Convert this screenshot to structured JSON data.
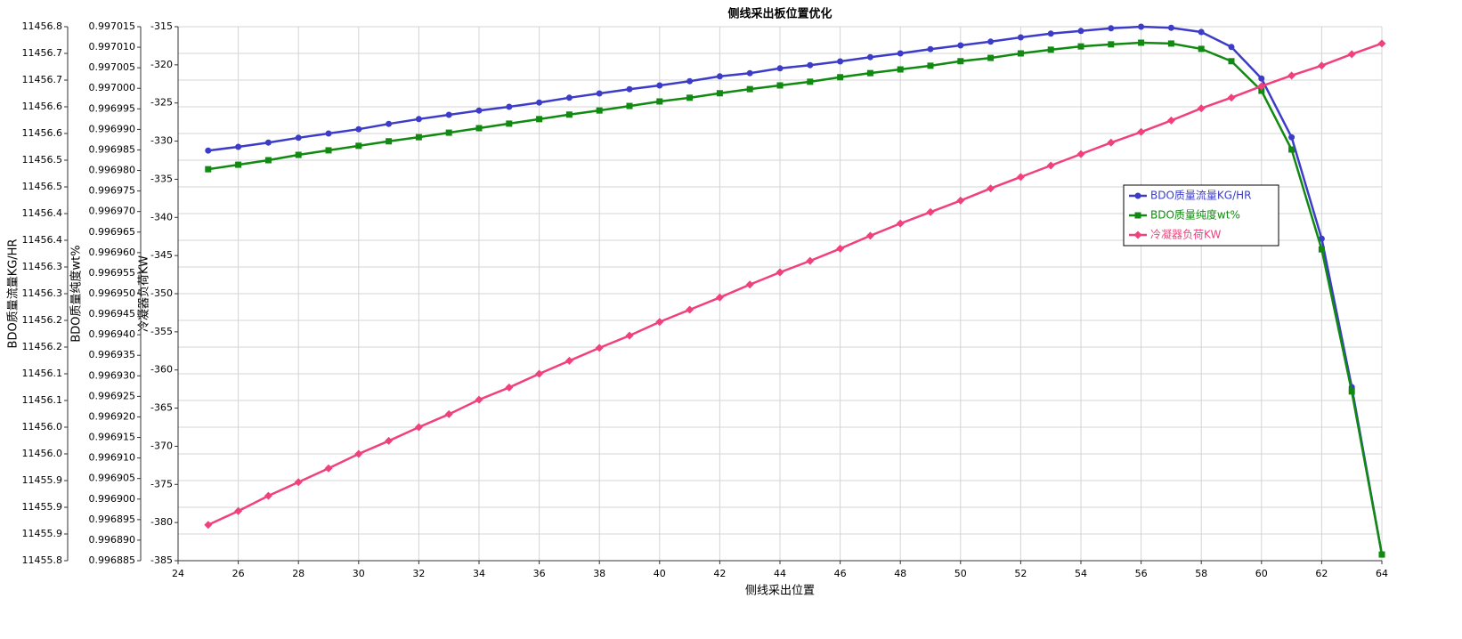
{
  "chart_data": {
    "type": "line",
    "title": "侧线采出板位置优化",
    "x_label": "侧线采出位置",
    "y_label": "BDO质量流量KG/HR",
    "y2_label": "BDO质量纯度wt%",
    "y3_label": "冷凝器负荷KW",
    "grid": true,
    "legend": "upper right",
    "x": [
      25,
      26,
      27,
      28,
      29,
      30,
      31,
      32,
      33,
      34,
      35,
      36,
      37,
      38,
      39,
      40,
      41,
      42,
      43,
      44,
      45,
      46,
      47,
      48,
      49,
      50,
      51,
      52,
      53,
      54,
      55,
      56,
      57,
      58,
      59,
      60,
      61,
      62,
      63,
      64
    ],
    "xlim": [
      24,
      64
    ],
    "xticks": [
      24,
      26,
      28,
      30,
      32,
      34,
      36,
      38,
      40,
      42,
      44,
      46,
      48,
      50,
      52,
      54,
      56,
      58,
      60,
      62,
      64
    ],
    "ylim": [
      11455.8,
      11456.8
    ],
    "yticks": [
      {
        "value": 11455.8,
        "label": "11455.8"
      },
      {
        "value": 11455.85,
        "label": "11455.9"
      },
      {
        "value": 11455.9,
        "label": "11455.9"
      },
      {
        "value": 11455.95,
        "label": "11455.9"
      },
      {
        "value": 11456.0,
        "label": "11456.0"
      },
      {
        "value": 11456.05,
        "label": "11456.0"
      },
      {
        "value": 11456.1,
        "label": "11456.1"
      },
      {
        "value": 11456.15,
        "label": "11456.1"
      },
      {
        "value": 11456.2,
        "label": "11456.2"
      },
      {
        "value": 11456.25,
        "label": "11456.2"
      },
      {
        "value": 11456.3,
        "label": "11456.3"
      },
      {
        "value": 11456.35,
        "label": "11456.3"
      },
      {
        "value": 11456.4,
        "label": "11456.4"
      },
      {
        "value": 11456.45,
        "label": "11456.4"
      },
      {
        "value": 11456.5,
        "label": "11456.5"
      },
      {
        "value": 11456.55,
        "label": "11456.5"
      },
      {
        "value": 11456.6,
        "label": "11456.6"
      },
      {
        "value": 11456.65,
        "label": "11456.6"
      },
      {
        "value": 11456.7,
        "label": "11456.7"
      },
      {
        "value": 11456.75,
        "label": "11456.7"
      },
      {
        "value": 11456.8,
        "label": "11456.8"
      }
    ],
    "y2lim": [
      0.996885,
      0.997015
    ],
    "y2ticks": [
      0.996885,
      {
        "value": 0.99689,
        "label": "0.996890"
      },
      0.996895,
      {
        "value": 0.9969,
        "label": "0.996900"
      },
      0.996905,
      {
        "value": 0.99691,
        "label": "0.996910"
      },
      0.996915,
      {
        "value": 0.99692,
        "label": "0.996920"
      },
      0.996925,
      {
        "value": 0.99693,
        "label": "0.996930"
      },
      0.996935,
      {
        "value": 0.99694,
        "label": "0.996940"
      },
      0.996945,
      {
        "value": 0.99695,
        "label": "0.996950"
      },
      0.996955,
      {
        "value": 0.99696,
        "label": "0.996960"
      },
      0.996965,
      {
        "value": 0.99697,
        "label": "0.996970"
      },
      0.996975,
      {
        "value": 0.99698,
        "label": "0.996980"
      },
      0.996985,
      {
        "value": 0.99699,
        "label": "0.996990"
      },
      0.996995,
      {
        "value": 0.997,
        "label": "0.997000"
      },
      0.997005,
      {
        "value": 0.99701,
        "label": "0.997010"
      },
      0.997015
    ],
    "y3lim": [
      -385,
      -315
    ],
    "y3ticks": [
      -385,
      -380,
      -375,
      -370,
      -365,
      -360,
      -355,
      -350,
      -345,
      -340,
      -335,
      -330,
      -325,
      -320,
      -315
    ],
    "series": [
      {
        "name": "BDO质量流量KG/HR",
        "color": "#3c3cc8",
        "marker": "circle",
        "axis": "y",
        "values": [
          11456.568,
          11456.575,
          11456.583,
          11456.592,
          11456.6,
          11456.608,
          11456.618,
          11456.627,
          11456.635,
          11456.643,
          11456.65,
          11456.658,
          11456.667,
          11456.675,
          11456.683,
          11456.69,
          11456.698,
          11456.707,
          11456.713,
          11456.722,
          11456.728,
          11456.735,
          11456.743,
          11456.75,
          11456.758,
          11456.765,
          11456.772,
          11456.78,
          11456.787,
          11456.792,
          11456.797,
          11456.8,
          11456.798,
          11456.79,
          11456.762,
          11456.703,
          11456.593,
          11456.403,
          11456.125,
          11455.812
        ]
      },
      {
        "name": "BDO质量纯度wt%",
        "color": "#108a10",
        "marker": "square",
        "axis": "y2",
        "values": [
          0.9969803,
          0.9969814,
          0.9969825,
          0.9969838,
          0.9969849,
          0.996986,
          0.9969871,
          0.9969881,
          0.9969892,
          0.9969903,
          0.9969914,
          0.9969925,
          0.9969936,
          0.9969946,
          0.9969957,
          0.9969968,
          0.9969977,
          0.9969988,
          0.9969998,
          0.9970007,
          0.9970016,
          0.9970027,
          0.9970037,
          0.9970046,
          0.9970055,
          0.9970066,
          0.9970074,
          0.9970085,
          0.9970094,
          0.9970102,
          0.9970107,
          0.9970111,
          0.9970109,
          0.9970096,
          0.9970066,
          0.9969994,
          0.9969851,
          0.9969608,
          0.9969262,
          0.9968865
        ]
      },
      {
        "name": "冷凝器负荷KW",
        "color": "#f0407e",
        "marker": "diamond",
        "axis": "y3",
        "values": [
          -380.3,
          -378.5,
          -376.5,
          -374.7,
          -372.9,
          -371.0,
          -369.3,
          -367.5,
          -365.8,
          -363.9,
          -362.3,
          -360.5,
          -358.8,
          -357.1,
          -355.5,
          -353.7,
          -352.1,
          -350.5,
          -348.8,
          -347.2,
          -345.7,
          -344.1,
          -342.4,
          -340.8,
          -339.3,
          -337.8,
          -336.2,
          -334.7,
          -333.2,
          -331.7,
          -330.2,
          -328.8,
          -327.3,
          -325.7,
          -324.3,
          -322.8,
          -321.4,
          -320.1,
          -318.6,
          -317.2
        ]
      }
    ]
  }
}
